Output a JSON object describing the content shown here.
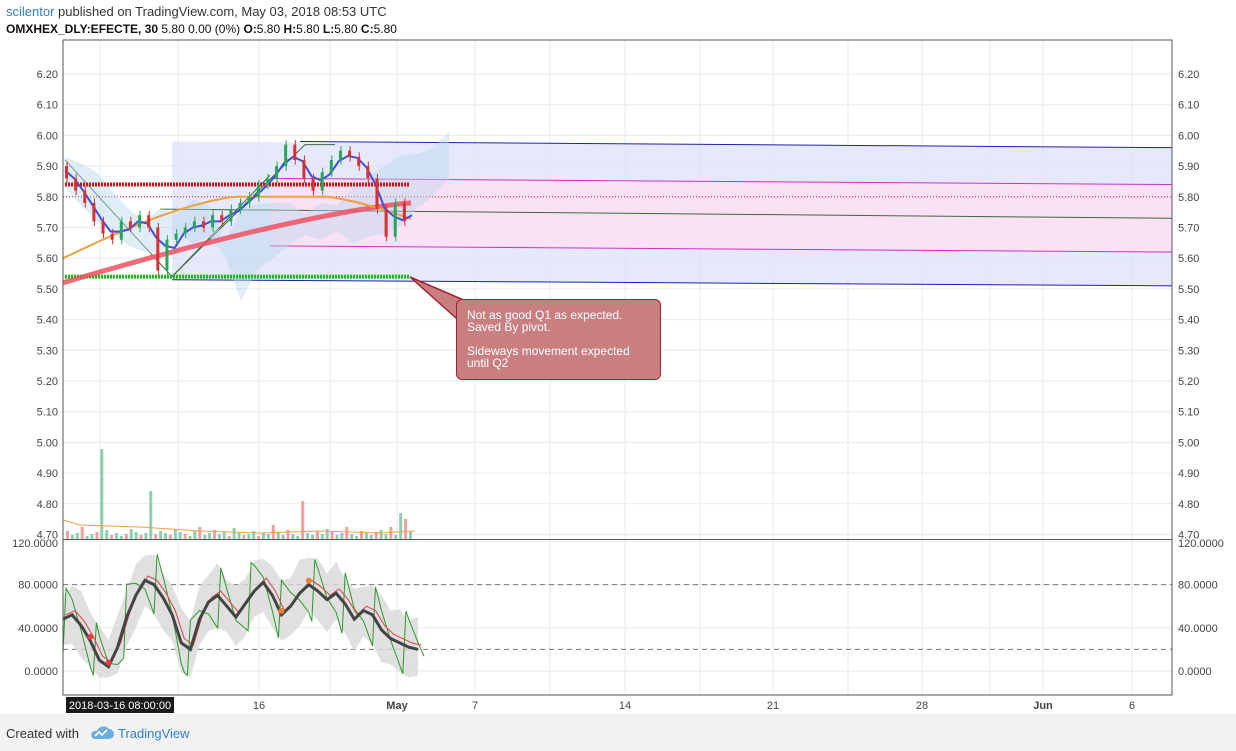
{
  "header": {
    "username": "scilentor",
    "published_text": "published on TradingView.com, May 03, 2018 08:53 UTC",
    "symbol": "OMXHEX_DLY:EFECTE, 30",
    "price_info": "5.80 0.00 (0%)",
    "ohlc": {
      "o_label": "O:",
      "o": "5.80",
      "h_label": "H:",
      "h": "5.80",
      "l_label": "L:",
      "l": "5.80",
      "c_label": "C:",
      "c": "5.80"
    }
  },
  "annotation": {
    "line1": "Not as good Q1 as expected.",
    "line2": "Saved By pivot.",
    "line3": "Sideways movement expected",
    "line4": "until Q2"
  },
  "footer": {
    "created_with": "Created with",
    "brand": "TradingView"
  },
  "time_axis": {
    "cursor_label": "2018-03-16 08:00:00",
    "ticks": [
      "16",
      "May",
      "7",
      "14",
      "21",
      "28",
      "Jun",
      "6"
    ]
  },
  "colors": {
    "grid": "#e6ebf0",
    "bull": "#26a65b",
    "bear": "#d93030",
    "ma_slow": "#f05060",
    "ma_fast": "#3f4fe0",
    "orange_ma": "#f0a040",
    "channel_fill": "#dde0fa",
    "channel_line": "#2020b0",
    "pink_fill": "#fde0f4",
    "pink_line": "#d030d0",
    "mid_line": "#3a6a3a",
    "pivot_red": "#d01010",
    "pivot_green": "#10c010",
    "cloud": "#b8d8ec",
    "osc_main": "#444444",
    "osc_fast": "#2a9a2a",
    "osc_band": "#d8d8d8",
    "callout_bg": "#c97f80"
  },
  "chart_data": [
    {
      "type": "candlestick",
      "title": "OMXHEX_DLY:EFECTE, 30",
      "ylim": [
        4.7,
        6.25
      ],
      "y_ticks": [
        "6.20",
        "6.10",
        "6.00",
        "5.90",
        "5.80",
        "5.70",
        "5.60",
        "5.50",
        "5.40",
        "5.30",
        "5.20",
        "5.10",
        "5.00",
        "4.90",
        "4.80",
        "4.70"
      ],
      "x_ticks": [
        "16",
        "May",
        "7",
        "14",
        "21",
        "28",
        "Jun",
        "6"
      ],
      "grid": true,
      "legend": "none",
      "price_path": [
        5.9,
        5.86,
        5.82,
        5.78,
        5.72,
        5.68,
        5.66,
        5.72,
        5.7,
        5.74,
        5.7,
        5.56,
        5.66,
        5.68,
        5.7,
        5.72,
        5.7,
        5.74,
        5.72,
        5.76,
        5.78,
        5.8,
        5.84,
        5.86,
        5.9,
        5.97,
        5.92,
        5.86,
        5.82,
        5.88,
        5.92,
        5.95,
        5.93,
        5.9,
        5.86,
        5.76,
        5.67,
        5.78,
        5.72
      ],
      "series": [
        {
          "name": "",
          "kind": "slow moving average",
          "from": 5.52,
          "to": 5.78
        },
        {
          "name": "",
          "kind": "channel upper",
          "from": 5.98,
          "to": 5.96
        },
        {
          "name": "",
          "kind": "channel lower",
          "from": 5.53,
          "to": 5.51
        },
        {
          "name": "",
          "kind": "pink band upper",
          "from": 5.86,
          "to": 5.84
        },
        {
          "name": "",
          "kind": "pink band lower",
          "from": 5.64,
          "to": 5.62
        },
        {
          "name": "",
          "kind": "median",
          "from": 5.76,
          "to": 5.73
        },
        {
          "name": "",
          "kind": "pivot resistance",
          "value": 5.84
        },
        {
          "name": "",
          "kind": "pivot support",
          "value": 5.54
        }
      ]
    },
    {
      "type": "line",
      "title": "",
      "ylim": [
        -8,
        120
      ],
      "y_ticks": [
        "120.0000",
        "80.0000",
        "40.0000",
        "0.0000"
      ],
      "reference_lines": [
        80,
        20
      ],
      "grid": true,
      "series": [
        {
          "name": "",
          "values": [
            48,
            52,
            42,
            28,
            10,
            4,
            22,
            50,
            70,
            84,
            80,
            68,
            52,
            26,
            20,
            48,
            64,
            70,
            60,
            50,
            62,
            74,
            82,
            70,
            52,
            60,
            72,
            80,
            74,
            66,
            72,
            62,
            48,
            56,
            52,
            38,
            30,
            26,
            22,
            20
          ]
        }
      ]
    }
  ]
}
